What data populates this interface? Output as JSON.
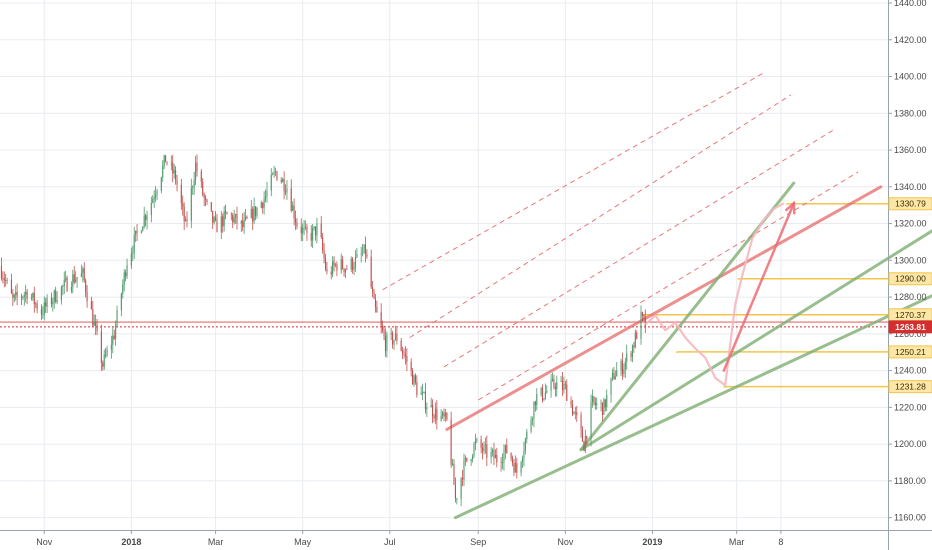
{
  "chart_data": {
    "type": "candlestick",
    "title": "",
    "xlabel": "",
    "ylabel": "",
    "ylim": [
      1150,
      1440
    ],
    "y_ticks": [
      1160,
      1180,
      1200,
      1220,
      1240,
      1260,
      1280,
      1300,
      1320,
      1340,
      1360,
      1380,
      1400,
      1420,
      1440
    ],
    "y_tick_labels": [
      "1160.00",
      "1180.00",
      "1200.00",
      "1220.00",
      "1240.00",
      "1260.00",
      "1280.00",
      "1300.00",
      "1320.00",
      "1340.00",
      "1360.00",
      "1380.00",
      "1400.00",
      "1420.00",
      "1440.00"
    ],
    "x_range": [
      "2017-10-01",
      "2019-06-15"
    ],
    "x_ticks": [
      {
        "date": "2017-11-01",
        "label": "Nov"
      },
      {
        "date": "2018-01-01",
        "label": "2018"
      },
      {
        "date": "2018-03-01",
        "label": "Mar"
      },
      {
        "date": "2018-05-01",
        "label": "May"
      },
      {
        "date": "2018-07-01",
        "label": "Jul"
      },
      {
        "date": "2018-09-01",
        "label": "Sep"
      },
      {
        "date": "2018-11-01",
        "label": "Nov"
      },
      {
        "date": "2019-01-01",
        "label": "2019"
      },
      {
        "date": "2019-03-01",
        "label": "Mar"
      },
      {
        "date": "2019-04-01",
        "label": "8"
      }
    ],
    "grid": true,
    "price_path": [
      [
        "2017-10-01",
        1297
      ],
      [
        "2017-10-10",
        1278
      ],
      [
        "2017-10-20",
        1283
      ],
      [
        "2017-10-30",
        1272
      ],
      [
        "2017-11-10",
        1282
      ],
      [
        "2017-11-20",
        1290
      ],
      [
        "2017-11-28",
        1292
      ],
      [
        "2017-12-05",
        1268
      ],
      [
        "2017-12-12",
        1243
      ],
      [
        "2017-12-20",
        1260
      ],
      [
        "2017-12-29",
        1300
      ],
      [
        "2018-01-08",
        1320
      ],
      [
        "2018-01-15",
        1332
      ],
      [
        "2018-01-25",
        1355
      ],
      [
        "2018-02-01",
        1345
      ],
      [
        "2018-02-08",
        1318
      ],
      [
        "2018-02-15",
        1352
      ],
      [
        "2018-02-22",
        1330
      ],
      [
        "2018-03-01",
        1318
      ],
      [
        "2018-03-10",
        1325
      ],
      [
        "2018-03-20",
        1318
      ],
      [
        "2018-03-30",
        1328
      ],
      [
        "2018-04-05",
        1335
      ],
      [
        "2018-04-12",
        1348
      ],
      [
        "2018-04-20",
        1340
      ],
      [
        "2018-04-27",
        1320
      ],
      [
        "2018-05-05",
        1312
      ],
      [
        "2018-05-12",
        1318
      ],
      [
        "2018-05-18",
        1292
      ],
      [
        "2018-05-25",
        1298
      ],
      [
        "2018-06-01",
        1296
      ],
      [
        "2018-06-08",
        1300
      ],
      [
        "2018-06-14",
        1305
      ],
      [
        "2018-06-20",
        1275
      ],
      [
        "2018-06-28",
        1255
      ],
      [
        "2018-07-06",
        1258
      ],
      [
        "2018-07-13",
        1245
      ],
      [
        "2018-07-20",
        1230
      ],
      [
        "2018-07-27",
        1222
      ],
      [
        "2018-08-03",
        1216
      ],
      [
        "2018-08-10",
        1212
      ],
      [
        "2018-08-15",
        1178
      ],
      [
        "2018-08-16",
        1170
      ],
      [
        "2018-08-22",
        1188
      ],
      [
        "2018-08-30",
        1200
      ],
      [
        "2018-09-07",
        1195
      ],
      [
        "2018-09-14",
        1192
      ],
      [
        "2018-09-22",
        1197
      ],
      [
        "2018-09-28",
        1185
      ],
      [
        "2018-10-05",
        1205
      ],
      [
        "2018-10-11",
        1225
      ],
      [
        "2018-10-18",
        1228
      ],
      [
        "2018-10-25",
        1233
      ],
      [
        "2018-11-01",
        1230
      ],
      [
        "2018-11-08",
        1215
      ],
      [
        "2018-11-14",
        1200
      ],
      [
        "2018-11-20",
        1222
      ],
      [
        "2018-11-28",
        1220
      ],
      [
        "2018-12-05",
        1238
      ],
      [
        "2018-12-12",
        1243
      ],
      [
        "2018-12-19",
        1255
      ],
      [
        "2018-12-24",
        1268
      ],
      [
        "2018-12-27",
        1265
      ]
    ],
    "forecast_path": [
      [
        "2018-12-27",
        1265
      ],
      [
        "2019-01-03",
        1270
      ],
      [
        "2019-01-10",
        1262
      ],
      [
        "2019-01-17",
        1266
      ],
      [
        "2019-01-24",
        1258
      ],
      [
        "2019-01-31",
        1252
      ],
      [
        "2019-02-07",
        1247
      ],
      [
        "2019-02-14",
        1236
      ],
      [
        "2019-02-21",
        1232
      ],
      [
        "2019-02-28",
        1276
      ],
      [
        "2019-03-05",
        1292
      ],
      [
        "2019-03-12",
        1312
      ],
      [
        "2019-03-20",
        1322
      ],
      [
        "2019-03-27",
        1328
      ],
      [
        "2019-04-03",
        1331
      ]
    ],
    "forecast_arrow": {
      "from": [
        "2019-02-20",
        1240
      ],
      "to": [
        "2019-04-10",
        1331
      ]
    },
    "horizontal_levels": [
      {
        "price": 1330.79,
        "label": "1330.79",
        "from": "2019-04-05",
        "kind": "yellow"
      },
      {
        "price": 1290.0,
        "label": "1290.00",
        "from": "2019-03-02",
        "kind": "yellow"
      },
      {
        "price": 1270.37,
        "label": "1270.37",
        "from": "2018-12-25",
        "kind": "yellow"
      },
      {
        "price": 1250.21,
        "label": "1250.21",
        "from": "2019-01-18",
        "kind": "yellow"
      },
      {
        "price": 1231.28,
        "label": "1231.28",
        "from": "2019-02-20",
        "kind": "yellow"
      },
      {
        "price": 1266.4,
        "label": "",
        "from": "2017-10-01",
        "kind": "red"
      },
      {
        "price": 1263.81,
        "label": "1263.81",
        "from": "2017-10-01",
        "kind": "red-current"
      }
    ],
    "trend_lines": [
      {
        "kind": "red-solid",
        "from": [
          "2018-08-10",
          1208
        ],
        "to": [
          "2019-06-10",
          1340
        ]
      },
      {
        "kind": "green-solid",
        "from": [
          "2018-08-16",
          1160
        ],
        "to": [
          "2019-08-30",
          1297
        ]
      },
      {
        "kind": "green-solid",
        "from": [
          "2018-11-12",
          1197
        ],
        "to": [
          "2019-07-20",
          1318
        ]
      },
      {
        "kind": "green-solid",
        "from": [
          "2018-11-12",
          1197
        ],
        "to": [
          "2019-04-10",
          1342
        ]
      },
      {
        "kind": "red-dashed",
        "from": [
          "2018-06-26",
          1284
        ],
        "to": [
          "2019-03-20",
          1402
        ]
      },
      {
        "kind": "red-dashed",
        "from": [
          "2018-07-15",
          1258
        ],
        "to": [
          "2019-04-08",
          1390
        ]
      },
      {
        "kind": "red-dashed",
        "from": [
          "2018-08-08",
          1242
        ],
        "to": [
          "2019-05-08",
          1371
        ]
      },
      {
        "kind": "red-dashed",
        "from": [
          "2018-09-01",
          1224
        ],
        "to": [
          "2019-05-25",
          1348
        ]
      }
    ],
    "colors": {
      "bull": "#4a9a6a",
      "bear": "#c0504d",
      "grid": "#e8ecf0",
      "axis": "#9aa2ab",
      "yellow": "#f3c64a",
      "yellow_tag": "#fce7a8",
      "red_line": "#e46a6a",
      "current_tag": "#d32f2f",
      "green_line": "#7fae72",
      "forecast": "#f6b7bc",
      "arrow": "#ef6b73"
    }
  }
}
